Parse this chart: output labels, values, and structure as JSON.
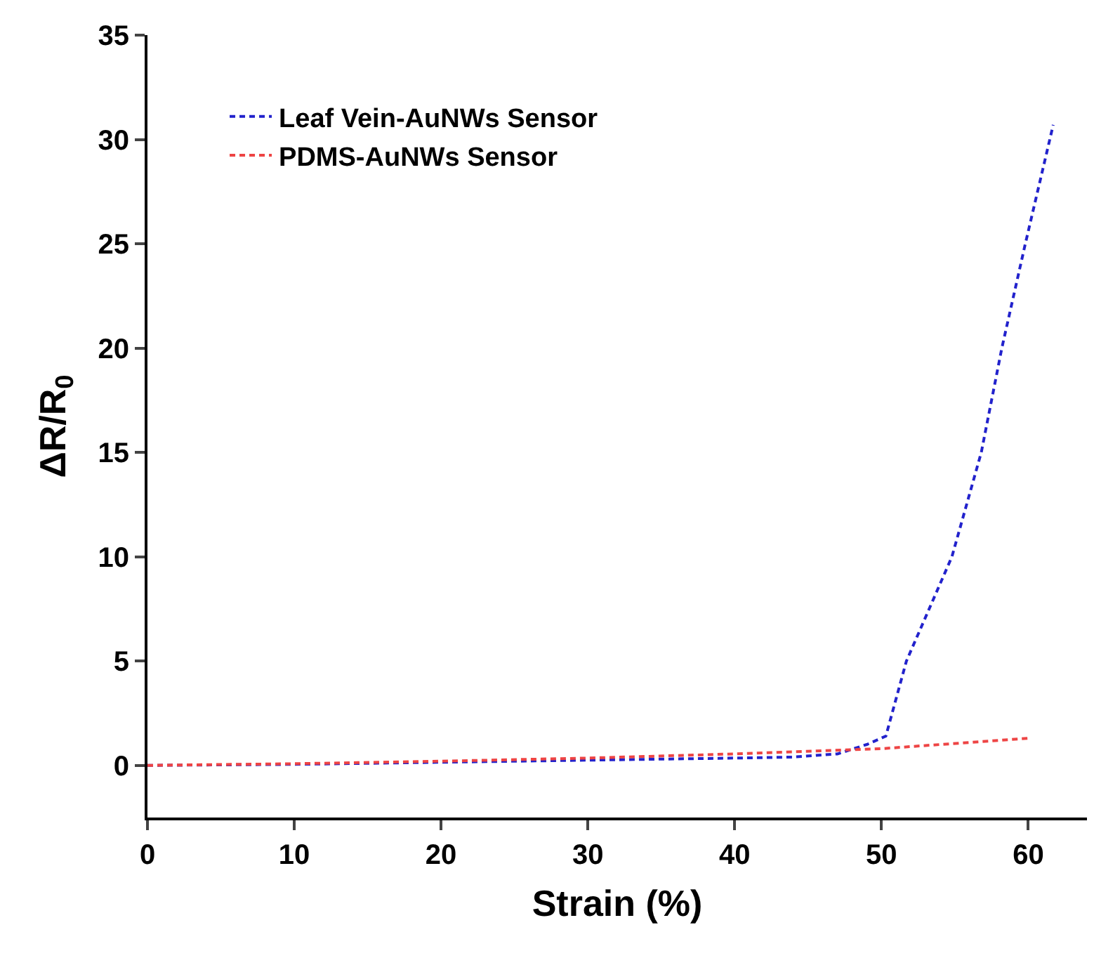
{
  "chart_data": {
    "type": "line",
    "xlabel": "Strain (%)",
    "ylabel": "ΔR/R$_{0}$",
    "xlim": [
      0,
      64
    ],
    "xticks": [
      0,
      10,
      20,
      30,
      40,
      50,
      60
    ],
    "ylim": [
      -2.5,
      35
    ],
    "yticks": [
      0,
      5,
      10,
      15,
      20,
      25,
      30,
      35
    ],
    "legend": "top left",
    "line_style": "dashed",
    "marker": "none",
    "series": [
      {
        "name": "Leaf Vein-AuNWs Sensor",
        "color": "#2222cc",
        "x": [
          0,
          10,
          20,
          30,
          40,
          44,
          47,
          49,
          50.3,
          51.7,
          54.8,
          56.8,
          58.2,
          59.8,
          61.7
        ],
        "values": [
          0,
          0.05,
          0.15,
          0.25,
          0.35,
          0.4,
          0.55,
          1.0,
          1.4,
          5,
          10,
          15,
          20,
          25,
          30.7
        ]
      },
      {
        "name": "PDMS-AuNWs Sensor",
        "color": "#ee4444",
        "x": [
          0,
          10,
          20,
          30,
          40,
          50,
          60
        ],
        "values": [
          0,
          0.08,
          0.2,
          0.35,
          0.55,
          0.8,
          1.3
        ]
      }
    ]
  }
}
